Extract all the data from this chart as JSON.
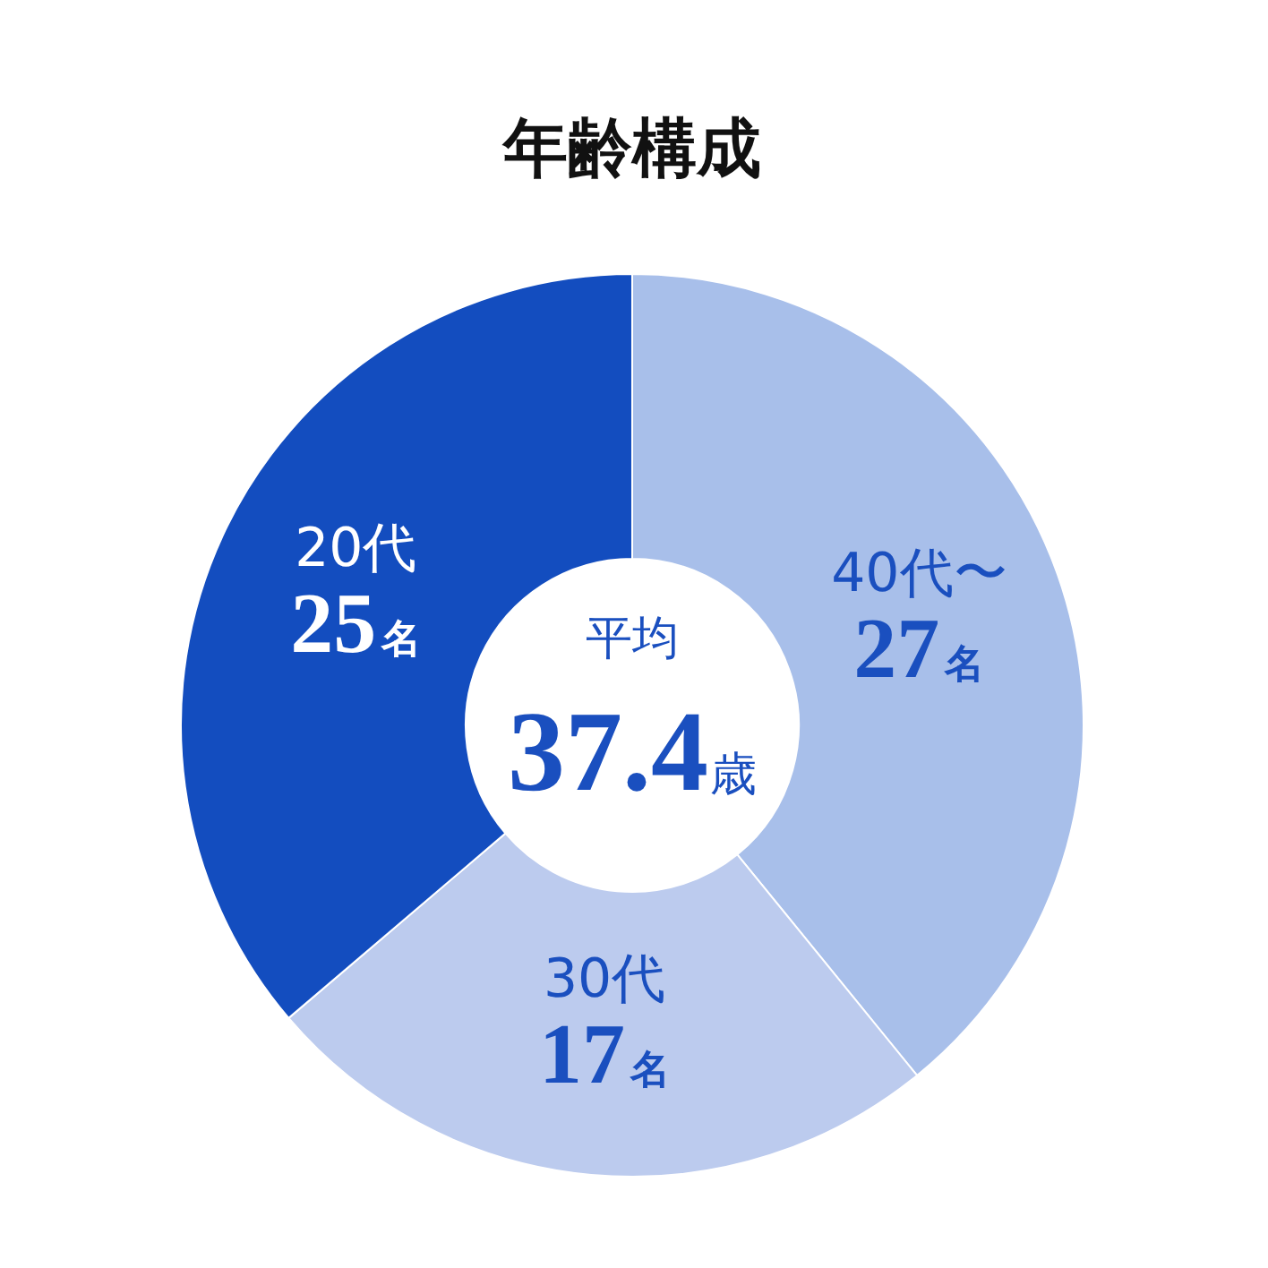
{
  "chart_data": {
    "type": "donut",
    "title": "年齢構成",
    "categories": [
      "40代〜",
      "30代",
      "20代"
    ],
    "values": [
      27,
      17,
      25
    ],
    "value_labels": [
      "27名",
      "17名",
      "25名"
    ],
    "colors": [
      "#a8bfea",
      "#bccbee",
      "#134dbf"
    ],
    "annotations": [
      "平均",
      "37.4歳"
    ]
  }
}
